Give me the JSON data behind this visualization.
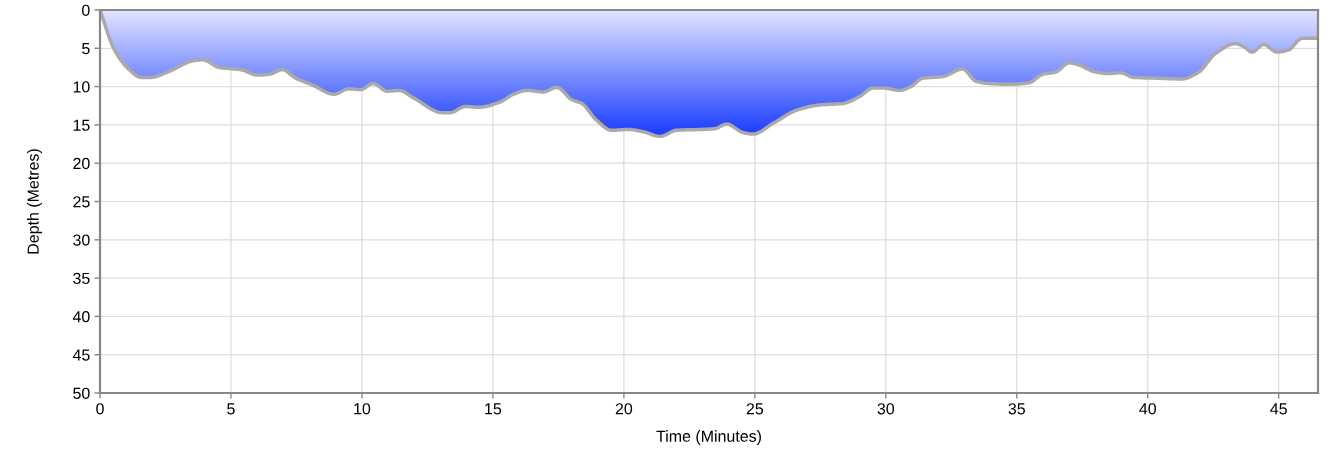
{
  "chart_data": {
    "type": "area",
    "xlabel": "Time (Minutes)",
    "ylabel": "Depth (Metres)",
    "x": [
      0,
      0.55,
      1.06,
      1.57,
      1.95,
      2.58,
      3.6,
      3.92,
      4.55,
      5.38,
      6.01,
      6.46,
      6.96,
      7.47,
      8.11,
      8.93,
      9.5,
      9.95,
      10.43,
      10.96,
      11.41,
      11.98,
      13.06,
      13.38,
      13.95,
      14.46,
      15.28,
      15.79,
      16.3,
      16.93,
      17.44,
      18.01,
      18.39,
      18.96,
      19.53,
      20.17,
      20.74,
      21.38,
      22.01,
      22.9,
      23.47,
      23.92,
      24.55,
      24.93,
      25.7,
      26.58,
      27.47,
      28.36,
      29.0,
      29.5,
      29.95,
      30.52,
      30.96,
      31.41,
      31.79,
      32.17,
      32.93,
      33.44,
      33.95,
      34.71,
      35.47,
      35.98,
      36.49,
      37.0,
      37.38,
      38.01,
      38.52,
      38.96,
      39.47,
      40.3,
      41.31,
      41.95,
      42.58,
      43.35,
      43.67,
      43.98,
      44.43,
      44.93,
      45.38,
      45.89,
      46.5
    ],
    "series": [
      {
        "color": "#1a3cff",
        "values": [
          0,
          5.2,
          7.6,
          8.8,
          8.8,
          8.1,
          6.6,
          6.5,
          7.5,
          7.8,
          8.5,
          8.4,
          7.8,
          8.9,
          9.8,
          11.0,
          10.3,
          10.4,
          9.6,
          10.6,
          10.5,
          11.5,
          13.4,
          13.4,
          12.6,
          12.7,
          12.0,
          11.0,
          10.5,
          10.7,
          10.1,
          11.7,
          12.2,
          14.4,
          15.7,
          15.6,
          15.9,
          16.5,
          15.7,
          15.6,
          15.5,
          14.9,
          16.0,
          16.2,
          14.8,
          13.1,
          12.4,
          12.2,
          11.3,
          10.2,
          10.2,
          10.5,
          10.0,
          8.9,
          8.8,
          8.7,
          7.7,
          9.3,
          9.6,
          9.7,
          9.5,
          8.4,
          8.1,
          6.9,
          7.2,
          8.1,
          8.3,
          8.2,
          8.8,
          8.9,
          9.0,
          8.1,
          5.7,
          4.4,
          4.8,
          5.5,
          4.5,
          5.5,
          5.2,
          3.7,
          3.7
        ]
      }
    ],
    "xlim": [
      0,
      46.5
    ],
    "ylim": [
      50,
      0
    ],
    "xticks": [
      0,
      5,
      10,
      15,
      20,
      25,
      30,
      35,
      40,
      45
    ],
    "yticks": [
      0,
      5,
      10,
      15,
      20,
      25,
      30,
      35,
      40,
      45,
      50
    ],
    "grid": true
  }
}
